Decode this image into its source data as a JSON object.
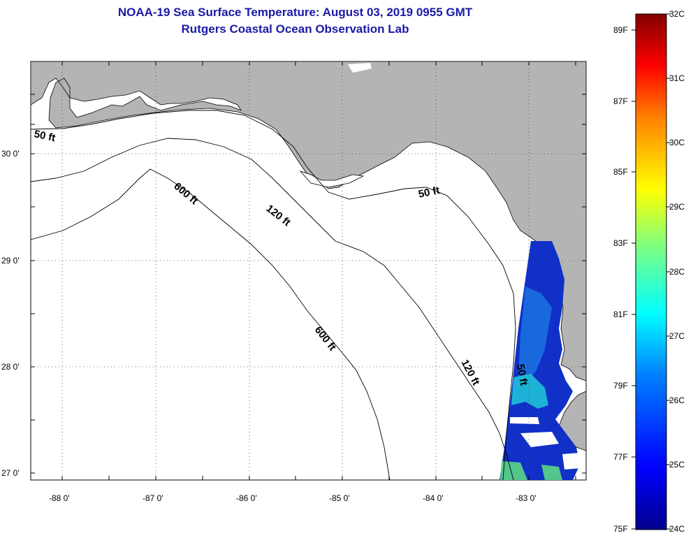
{
  "title": {
    "line1": "NOAA-19 Sea Surface Temperature:  August 03, 2019 0955 GMT",
    "line2": "Rutgers Coastal Ocean Observation Lab"
  },
  "map": {
    "lat_labels": [
      "30 0'",
      "29 0'",
      "28 0'",
      "27 0'"
    ],
    "lon_labels": [
      "-88 0'",
      "-87 0'",
      "-86 0'",
      "-85 0'",
      "-84 0'",
      "-83 0'"
    ],
    "contours": {
      "c50_west": "50 ft",
      "c50_east": "50 ft",
      "c50_south": "50 ft",
      "c120_a": "120 ft",
      "c120_b": "120 ft",
      "c600_a": "600 ft",
      "c600_b": "600 ft"
    }
  },
  "colorbar": {
    "celsius": [
      "32C",
      "31C",
      "30C",
      "29C",
      "28C",
      "27C",
      "26C",
      "25C",
      "24C"
    ],
    "fahrenheit": [
      "89F",
      "87F",
      "85F",
      "83F",
      "81F",
      "79F",
      "77F",
      "75F"
    ]
  },
  "colors": {
    "title": "#1a1aa6",
    "land": "#b4b4b4",
    "ocean": "#ffffff"
  }
}
